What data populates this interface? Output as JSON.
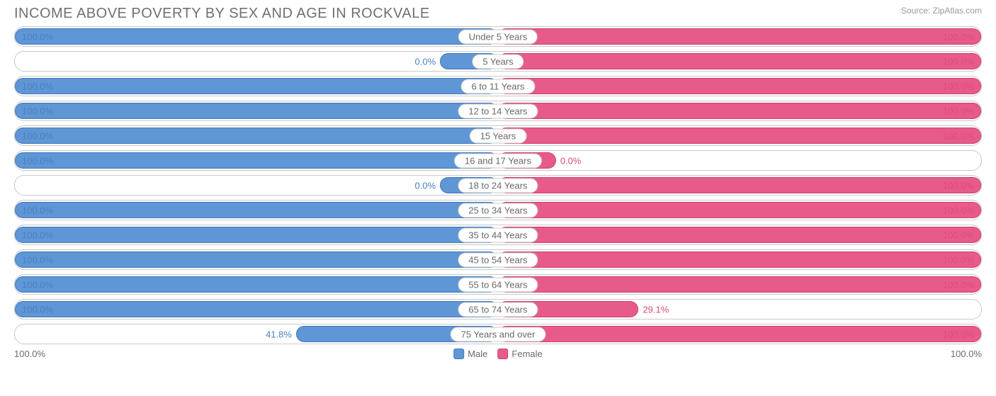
{
  "header": {
    "title": "INCOME ABOVE POVERTY BY SEX AND AGE IN ROCKVALE",
    "source": "Source: ZipAtlas.com"
  },
  "colors": {
    "male_fill": "#5f96d5",
    "male_border": "#3f79bb",
    "male_text": "#4a80c2",
    "female_fill": "#e75b8a",
    "female_border": "#d13d70",
    "female_text": "#e04a7d",
    "track_border": "#c9c9c9",
    "text_gray": "#6d6d6d",
    "title_color": "#706f72",
    "source_color": "#9a999c",
    "background": "#ffffff"
  },
  "chart": {
    "type": "diverging-bar",
    "min_bar_pct": 12,
    "axis": {
      "left": "100.0%",
      "right": "100.0%"
    },
    "legend": [
      {
        "label": "Male",
        "color": "#5f96d5",
        "border": "#3f79bb"
      },
      {
        "label": "Female",
        "color": "#e75b8a",
        "border": "#d13d70"
      }
    ],
    "rows": [
      {
        "category": "Under 5 Years",
        "male": 100.0,
        "male_label": "100.0%",
        "female": 100.0,
        "female_label": "100.0%"
      },
      {
        "category": "5 Years",
        "male": 0.0,
        "male_label": "0.0%",
        "female": 100.0,
        "female_label": "100.0%"
      },
      {
        "category": "6 to 11 Years",
        "male": 100.0,
        "male_label": "100.0%",
        "female": 100.0,
        "female_label": "100.0%"
      },
      {
        "category": "12 to 14 Years",
        "male": 100.0,
        "male_label": "100.0%",
        "female": 100.0,
        "female_label": "100.0%"
      },
      {
        "category": "15 Years",
        "male": 100.0,
        "male_label": "100.0%",
        "female": 100.0,
        "female_label": "100.0%"
      },
      {
        "category": "16 and 17 Years",
        "male": 100.0,
        "male_label": "100.0%",
        "female": 0.0,
        "female_label": "0.0%"
      },
      {
        "category": "18 to 24 Years",
        "male": 0.0,
        "male_label": "0.0%",
        "female": 100.0,
        "female_label": "100.0%"
      },
      {
        "category": "25 to 34 Years",
        "male": 100.0,
        "male_label": "100.0%",
        "female": 100.0,
        "female_label": "100.0%"
      },
      {
        "category": "35 to 44 Years",
        "male": 100.0,
        "male_label": "100.0%",
        "female": 100.0,
        "female_label": "100.0%"
      },
      {
        "category": "45 to 54 Years",
        "male": 100.0,
        "male_label": "100.0%",
        "female": 100.0,
        "female_label": "100.0%"
      },
      {
        "category": "55 to 64 Years",
        "male": 100.0,
        "male_label": "100.0%",
        "female": 100.0,
        "female_label": "100.0%"
      },
      {
        "category": "65 to 74 Years",
        "male": 100.0,
        "male_label": "100.0%",
        "female": 29.1,
        "female_label": "29.1%"
      },
      {
        "category": "75 Years and over",
        "male": 41.8,
        "male_label": "41.8%",
        "female": 100.0,
        "female_label": "100.0%"
      }
    ]
  }
}
